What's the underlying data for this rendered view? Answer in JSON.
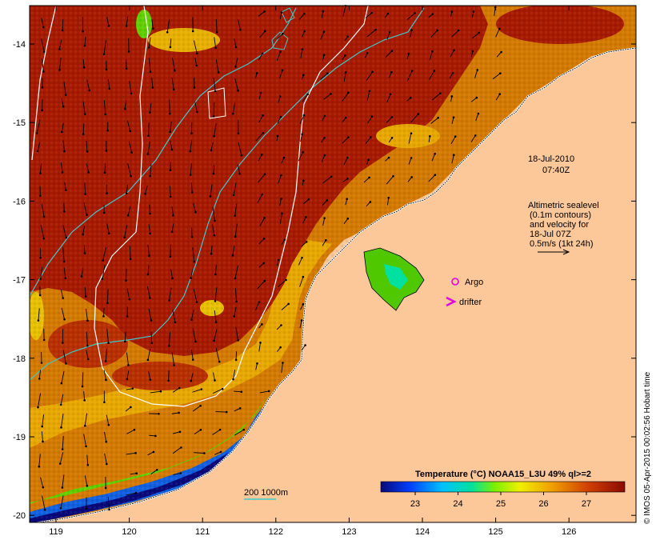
{
  "map": {
    "lon_ticks": [
      "119",
      "120",
      "121",
      "122",
      "123",
      "124",
      "125",
      "126"
    ],
    "lat_ticks": [
      "-14",
      "-15",
      "-16",
      "-17",
      "-18",
      "-19",
      "-20"
    ],
    "date": "18-Jul-2010",
    "time": "07:40Z",
    "altimetry_lines": [
      "Altimetric sealevel",
      "(0.1m contours)",
      "and velocity for",
      "18-Jul 07Z",
      "0.5m/s (1kt 24h)"
    ],
    "argo_label": "Argo",
    "drifter_label": "drifter",
    "depth_label": "200  1000m",
    "colorbar_title": "Temperature (°C) NOAA15_L3U 49% ql>=2",
    "colorbar_ticks": [
      "23",
      "24",
      "25",
      "26",
      "27"
    ],
    "credit": "© IMOS 05-Apr-2015 00:02:56 Hobart time",
    "colors": {
      "land": "#fcc89a",
      "warm": "#a61a00",
      "mid": "#d47a00",
      "cool": "#f0c000",
      "cold": "#00a0d0",
      "isobath": "#40c8c8",
      "argo": "#e000e0"
    }
  }
}
